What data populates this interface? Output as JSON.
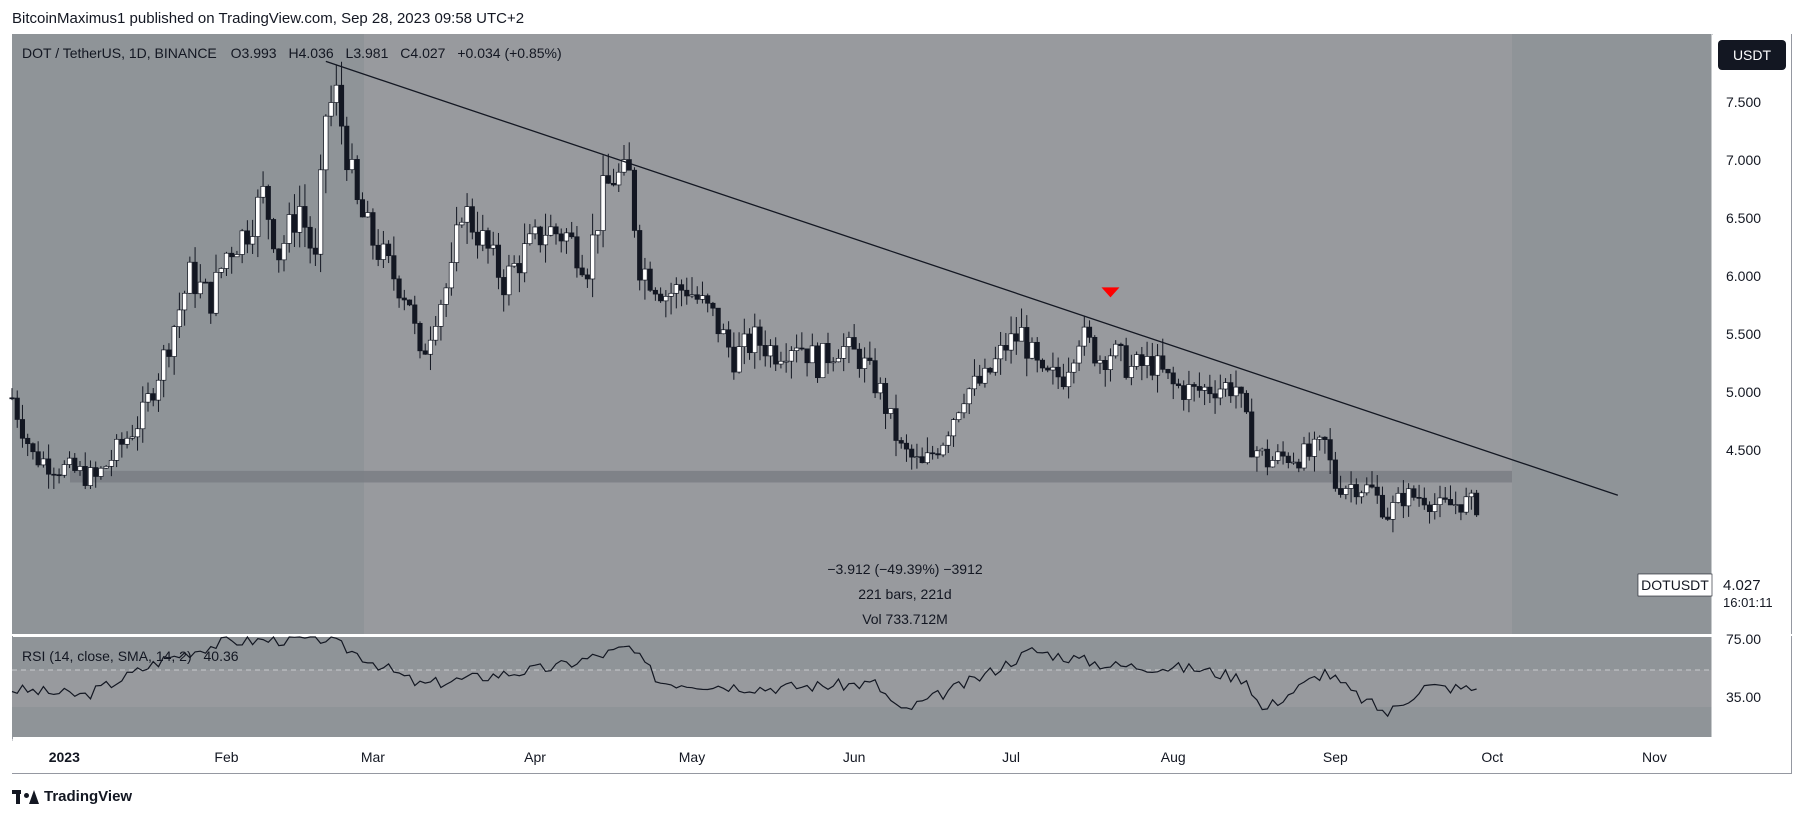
{
  "header": {
    "caption": "BitcoinMaximus1 published on TradingView.com, Sep 28, 2023 09:58 UTC+2"
  },
  "legend": {
    "symbol": "DOT / TetherUS, 1D, BINANCE",
    "o_label": "O",
    "o_value": "3.993",
    "h_label": "H",
    "h_value": "4.036",
    "l_label": "L",
    "l_value": "3.981",
    "c_label": "C",
    "c_value": "4.027",
    "change": "+0.034 (+0.85%)"
  },
  "currency_badge": "USDT",
  "price_tag": {
    "symbol": "DOTUSDT",
    "price": "4.027",
    "countdown": "16:01:11"
  },
  "measure": {
    "line1": "−3.912 (−49.39%) −3912",
    "line2": "221 bars, 221d",
    "line3": "Vol 733.712M"
  },
  "rsi": {
    "label": "RSI (14, close, SMA, 14, 2)",
    "value": "40.36",
    "ticks": [
      "75.00",
      "35.00"
    ]
  },
  "footer_brand": "TradingView",
  "colors": {
    "background": "#8f9498",
    "shaded": "#989a9e",
    "up_fill": "#ffffff",
    "down_fill": "#131722",
    "support_band": "#7a7e84",
    "marker": "#ff0000"
  },
  "chart_data": {
    "type": "candlestick",
    "title": "DOT / TetherUS, 1D, BINANCE",
    "x_ticks": [
      "2023",
      "Feb",
      "Mar",
      "Apr",
      "May",
      "Jun",
      "Jul",
      "Aug",
      "Sep",
      "Oct",
      "Nov"
    ],
    "y_ticks": [
      "7.500",
      "7.000",
      "6.500",
      "6.000",
      "5.500",
      "5.000",
      "4.500"
    ],
    "ylim": [
      3.8,
      8.0
    ],
    "xlim": [
      "2022-12-22",
      "2023-11-12"
    ],
    "support_zone": [
      4.22,
      4.32
    ],
    "trendline": [
      {
        "date": "2023-02-20",
        "price": 7.85
      },
      {
        "date": "2023-10-25",
        "price": 4.11
      }
    ],
    "bearish_marker": {
      "date": "2023-07-20",
      "price": 5.85
    },
    "price_close": [
      [
        "2022-12-22",
        4.95
      ],
      [
        "2022-12-26",
        4.45
      ],
      [
        "2022-12-31",
        4.35
      ],
      [
        "2023-01-04",
        4.3
      ],
      [
        "2023-01-07",
        4.25
      ],
      [
        "2023-01-12",
        4.55
      ],
      [
        "2023-01-16",
        4.8
      ],
      [
        "2023-01-20",
        5.3
      ],
      [
        "2023-01-25",
        6.0
      ],
      [
        "2023-01-29",
        5.8
      ],
      [
        "2023-02-01",
        6.2
      ],
      [
        "2023-02-05",
        6.4
      ],
      [
        "2023-02-08",
        6.7
      ],
      [
        "2023-02-11",
        6.2
      ],
      [
        "2023-02-15",
        6.6
      ],
      [
        "2023-02-18",
        6.1
      ],
      [
        "2023-02-20",
        7.4
      ],
      [
        "2023-02-22",
        7.55
      ],
      [
        "2023-02-26",
        6.6
      ],
      [
        "2023-03-01",
        6.3
      ],
      [
        "2023-03-05",
        6.0
      ],
      [
        "2023-03-08",
        5.8
      ],
      [
        "2023-03-10",
        5.25
      ],
      [
        "2023-03-13",
        5.7
      ],
      [
        "2023-03-16",
        6.0
      ],
      [
        "2023-03-18",
        6.6
      ],
      [
        "2023-03-22",
        6.3
      ],
      [
        "2023-03-26",
        5.95
      ],
      [
        "2023-03-30",
        6.2
      ],
      [
        "2023-04-03",
        6.4
      ],
      [
        "2023-04-07",
        6.35
      ],
      [
        "2023-04-11",
        6.1
      ],
      [
        "2023-04-14",
        6.7
      ],
      [
        "2023-04-16",
        6.85
      ],
      [
        "2023-04-19",
        6.85
      ],
      [
        "2023-04-21",
        6.1
      ],
      [
        "2023-04-26",
        5.85
      ],
      [
        "2023-04-30",
        5.9
      ],
      [
        "2023-05-05",
        5.65
      ],
      [
        "2023-05-09",
        5.3
      ],
      [
        "2023-05-13",
        5.45
      ],
      [
        "2023-05-17",
        5.35
      ],
      [
        "2023-05-21",
        5.45
      ],
      [
        "2023-05-25",
        5.25
      ],
      [
        "2023-05-29",
        5.4
      ],
      [
        "2023-06-02",
        5.3
      ],
      [
        "2023-06-06",
        5.0
      ],
      [
        "2023-06-10",
        4.5
      ],
      [
        "2023-06-14",
        4.35
      ],
      [
        "2023-06-18",
        4.6
      ],
      [
        "2023-06-22",
        5.0
      ],
      [
        "2023-06-26",
        5.1
      ],
      [
        "2023-06-30",
        5.4
      ],
      [
        "2023-07-03",
        5.5
      ],
      [
        "2023-07-07",
        5.1
      ],
      [
        "2023-07-11",
        5.15
      ],
      [
        "2023-07-14",
        5.5
      ],
      [
        "2023-07-18",
        5.3
      ],
      [
        "2023-07-20",
        5.35
      ],
      [
        "2023-07-24",
        5.2
      ],
      [
        "2023-07-28",
        5.25
      ],
      [
        "2023-08-01",
        5.05
      ],
      [
        "2023-08-05",
        5.0
      ],
      [
        "2023-08-09",
        5.05
      ],
      [
        "2023-08-13",
        5.05
      ],
      [
        "2023-08-16",
        4.55
      ],
      [
        "2023-08-19",
        4.4
      ],
      [
        "2023-08-23",
        4.45
      ],
      [
        "2023-08-27",
        4.45
      ],
      [
        "2023-08-30",
        4.55
      ],
      [
        "2023-09-01",
        4.2
      ],
      [
        "2023-09-05",
        4.2
      ],
      [
        "2023-09-08",
        4.15
      ],
      [
        "2023-09-11",
        3.95
      ],
      [
        "2023-09-14",
        4.1
      ],
      [
        "2023-09-18",
        4.1
      ],
      [
        "2023-09-21",
        4.0
      ],
      [
        "2023-09-25",
        4.05
      ],
      [
        "2023-09-28",
        4.027
      ]
    ],
    "rsi_series": [
      [
        "2022-12-22",
        40
      ],
      [
        "2023-01-05",
        36
      ],
      [
        "2023-01-20",
        60
      ],
      [
        "2023-02-01",
        72
      ],
      [
        "2023-02-20",
        74
      ],
      [
        "2023-03-10",
        43
      ],
      [
        "2023-04-05",
        55
      ],
      [
        "2023-04-19",
        68
      ],
      [
        "2023-04-25",
        45
      ],
      [
        "2023-05-15",
        41
      ],
      [
        "2023-06-05",
        44
      ],
      [
        "2023-06-10",
        25
      ],
      [
        "2023-06-25",
        48
      ],
      [
        "2023-07-05",
        66
      ],
      [
        "2023-07-20",
        56
      ],
      [
        "2023-08-05",
        54
      ],
      [
        "2023-08-15",
        47
      ],
      [
        "2023-08-18",
        26
      ],
      [
        "2023-08-30",
        52
      ],
      [
        "2023-09-05",
        36
      ],
      [
        "2023-09-11",
        24
      ],
      [
        "2023-09-18",
        42
      ],
      [
        "2023-09-28",
        40.36
      ]
    ]
  }
}
